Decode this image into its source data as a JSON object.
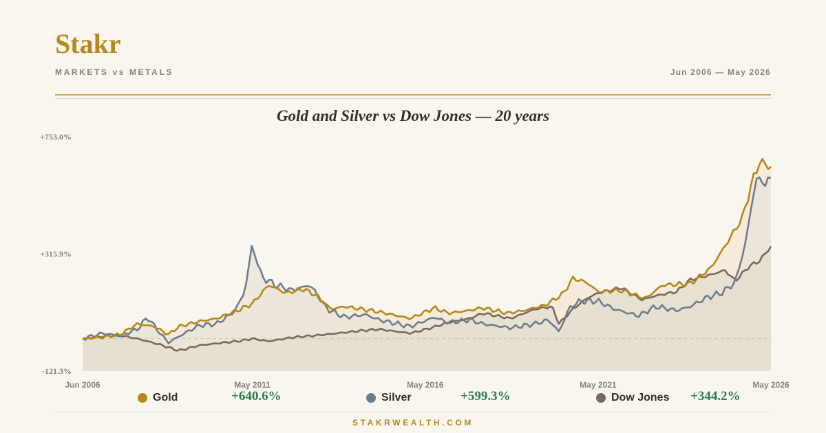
{
  "header": {
    "brand": "Stakr",
    "subtitle": "MARKETS vs METALS",
    "date_range": "Jun 2006 — May 2026"
  },
  "footer": {
    "site": "STAKRWEALTH.COM"
  },
  "colors": {
    "gold": "#b8891a",
    "silver": "#6e7d8b",
    "dow": "#7a6a5c",
    "positive": "#2e7d4f",
    "background": "#f9f6f0"
  },
  "chart_data": {
    "type": "line",
    "title": "Gold and Silver vs Dow Jones — 20 years",
    "y_tick_labels": [
      "+753.0%",
      "+315.9%",
      "-121.3%"
    ],
    "y_ticks": [
      753.0,
      315.9,
      -121.3
    ],
    "ylim": [
      -121.3,
      753.0
    ],
    "baseline": 0,
    "x_tick_labels": [
      "Jun 2006",
      "May 2011",
      "May 2016",
      "May 2021",
      "May 2026"
    ],
    "x_tick_years": [
      2006.42,
      2011.33,
      2016.33,
      2021.33,
      2026.33
    ],
    "xlim": [
      2006.42,
      2026.33
    ],
    "grid": false,
    "legend_position": "bottom",
    "series": [
      {
        "name": "Gold",
        "color": "#b8891a",
        "final_label": "+640.6%",
        "points": [
          [
            2006.42,
            0
          ],
          [
            2007.0,
            5
          ],
          [
            2007.5,
            15
          ],
          [
            2008.0,
            55
          ],
          [
            2008.5,
            45
          ],
          [
            2008.9,
            15
          ],
          [
            2009.2,
            45
          ],
          [
            2009.8,
            65
          ],
          [
            2010.3,
            75
          ],
          [
            2010.9,
            105
          ],
          [
            2011.33,
            130
          ],
          [
            2011.8,
            200
          ],
          [
            2012.3,
            170
          ],
          [
            2012.8,
            185
          ],
          [
            2013.2,
            160
          ],
          [
            2013.6,
            110
          ],
          [
            2014.0,
            120
          ],
          [
            2014.5,
            110
          ],
          [
            2015.0,
            100
          ],
          [
            2015.9,
            75
          ],
          [
            2016.6,
            115
          ],
          [
            2017.0,
            95
          ],
          [
            2017.6,
            105
          ],
          [
            2018.0,
            115
          ],
          [
            2018.7,
            95
          ],
          [
            2019.2,
            105
          ],
          [
            2019.8,
            125
          ],
          [
            2020.3,
            165
          ],
          [
            2020.6,
            225
          ],
          [
            2021.0,
            210
          ],
          [
            2021.33,
            175
          ],
          [
            2022.0,
            180
          ],
          [
            2022.7,
            150
          ],
          [
            2023.2,
            200
          ],
          [
            2024.0,
            205
          ],
          [
            2024.6,
            265
          ],
          [
            2025.0,
            345
          ],
          [
            2025.5,
            450
          ],
          [
            2025.8,
            590
          ],
          [
            2026.0,
            660
          ],
          [
            2026.33,
            640.6
          ]
        ]
      },
      {
        "name": "Silver",
        "color": "#6e7d8b",
        "final_label": "+599.3%",
        "points": [
          [
            2006.42,
            0
          ],
          [
            2007.0,
            20
          ],
          [
            2007.5,
            10
          ],
          [
            2008.0,
            35
          ],
          [
            2008.3,
            80
          ],
          [
            2008.6,
            30
          ],
          [
            2008.9,
            -15
          ],
          [
            2009.3,
            15
          ],
          [
            2009.8,
            50
          ],
          [
            2010.3,
            55
          ],
          [
            2010.8,
            100
          ],
          [
            2011.1,
            170
          ],
          [
            2011.33,
            350
          ],
          [
            2011.6,
            230
          ],
          [
            2012.0,
            200
          ],
          [
            2012.5,
            180
          ],
          [
            2013.0,
            200
          ],
          [
            2013.5,
            110
          ],
          [
            2014.0,
            80
          ],
          [
            2014.6,
            90
          ],
          [
            2015.0,
            70
          ],
          [
            2015.9,
            45
          ],
          [
            2016.6,
            80
          ],
          [
            2017.0,
            60
          ],
          [
            2017.6,
            70
          ],
          [
            2018.0,
            55
          ],
          [
            2018.8,
            40
          ],
          [
            2019.5,
            55
          ],
          [
            2019.9,
            70
          ],
          [
            2020.2,
            25
          ],
          [
            2020.5,
            115
          ],
          [
            2020.8,
            140
          ],
          [
            2021.33,
            140
          ],
          [
            2021.8,
            110
          ],
          [
            2022.5,
            85
          ],
          [
            2023.0,
            120
          ],
          [
            2023.6,
            105
          ],
          [
            2024.0,
            120
          ],
          [
            2024.5,
            155
          ],
          [
            2024.9,
            170
          ],
          [
            2025.3,
            210
          ],
          [
            2025.6,
            360
          ],
          [
            2025.9,
            600
          ],
          [
            2026.1,
            580
          ],
          [
            2026.33,
            599.3
          ]
        ]
      },
      {
        "name": "Dow Jones",
        "color": "#7a6a5c",
        "final_label": "+344.2%",
        "points": [
          [
            2006.42,
            0
          ],
          [
            2007.0,
            8
          ],
          [
            2007.5,
            12
          ],
          [
            2008.0,
            0
          ],
          [
            2008.6,
            -20
          ],
          [
            2009.2,
            -45
          ],
          [
            2009.8,
            -25
          ],
          [
            2010.5,
            -15
          ],
          [
            2011.0,
            -8
          ],
          [
            2011.33,
            0
          ],
          [
            2011.8,
            -10
          ],
          [
            2012.5,
            5
          ],
          [
            2013.0,
            10
          ],
          [
            2013.8,
            20
          ],
          [
            2014.5,
            30
          ],
          [
            2015.0,
            35
          ],
          [
            2015.9,
            20
          ],
          [
            2016.5,
            40
          ],
          [
            2017.0,
            60
          ],
          [
            2017.6,
            75
          ],
          [
            2018.0,
            95
          ],
          [
            2018.8,
            75
          ],
          [
            2019.5,
            110
          ],
          [
            2020.0,
            120
          ],
          [
            2020.2,
            55
          ],
          [
            2020.6,
            110
          ],
          [
            2021.0,
            150
          ],
          [
            2021.33,
            170
          ],
          [
            2022.0,
            190
          ],
          [
            2022.6,
            145
          ],
          [
            2023.0,
            160
          ],
          [
            2023.6,
            175
          ],
          [
            2024.0,
            220
          ],
          [
            2024.5,
            235
          ],
          [
            2025.0,
            255
          ],
          [
            2025.3,
            215
          ],
          [
            2025.7,
            270
          ],
          [
            2026.0,
            290
          ],
          [
            2026.33,
            344.2
          ]
        ]
      }
    ]
  }
}
